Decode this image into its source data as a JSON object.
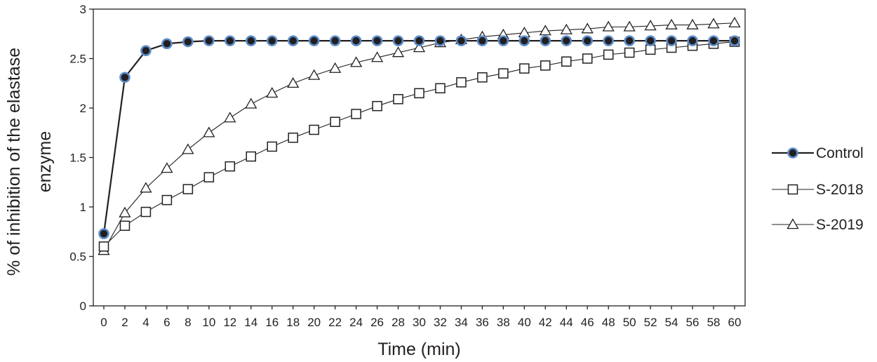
{
  "chart_data": {
    "type": "line",
    "title": "",
    "xlabel": "Time (min)",
    "ylabel_line1": "% of inhibition of the elastase",
    "ylabel_line2": "enzyme",
    "ylim": [
      0,
      3
    ],
    "yticks": [
      "0",
      "0.5",
      "1",
      "1.5",
      "2",
      "2.5",
      "3"
    ],
    "legend_position": "right",
    "x": [
      0,
      2,
      4,
      6,
      8,
      10,
      12,
      14,
      16,
      18,
      20,
      22,
      24,
      26,
      28,
      30,
      32,
      34,
      36,
      38,
      40,
      42,
      44,
      46,
      48,
      50,
      52,
      54,
      56,
      58,
      60
    ],
    "series": [
      {
        "name": "Control",
        "marker": "filled-circle",
        "line_color": "#231f20",
        "marker_fill": "#231f20",
        "marker_edge": "#5b8cc8",
        "values": [
          0.73,
          2.31,
          2.58,
          2.65,
          2.67,
          2.68,
          2.68,
          2.68,
          2.68,
          2.68,
          2.68,
          2.68,
          2.68,
          2.68,
          2.68,
          2.68,
          2.68,
          2.68,
          2.68,
          2.68,
          2.68,
          2.68,
          2.68,
          2.68,
          2.68,
          2.68,
          2.68,
          2.68,
          2.68,
          2.68,
          2.68
        ]
      },
      {
        "name": "S-2018",
        "marker": "open-square",
        "line_color": "#231f20",
        "marker_fill": "#ffffff",
        "marker_edge": "#231f20",
        "values": [
          0.6,
          0.81,
          0.95,
          1.07,
          1.18,
          1.3,
          1.41,
          1.51,
          1.61,
          1.7,
          1.78,
          1.86,
          1.94,
          2.02,
          2.09,
          2.15,
          2.2,
          2.26,
          2.31,
          2.35,
          2.4,
          2.43,
          2.47,
          2.5,
          2.54,
          2.56,
          2.59,
          2.61,
          2.63,
          2.65,
          2.67
        ]
      },
      {
        "name": "S-2019",
        "marker": "open-triangle",
        "line_color": "#231f20",
        "marker_fill": "#ffffff",
        "marker_edge": "#231f20",
        "values": [
          0.56,
          0.94,
          1.19,
          1.39,
          1.58,
          1.75,
          1.9,
          2.04,
          2.15,
          2.25,
          2.33,
          2.4,
          2.46,
          2.51,
          2.56,
          2.61,
          2.66,
          2.69,
          2.72,
          2.74,
          2.76,
          2.78,
          2.79,
          2.8,
          2.82,
          2.82,
          2.83,
          2.84,
          2.84,
          2.85,
          2.86
        ]
      }
    ]
  }
}
